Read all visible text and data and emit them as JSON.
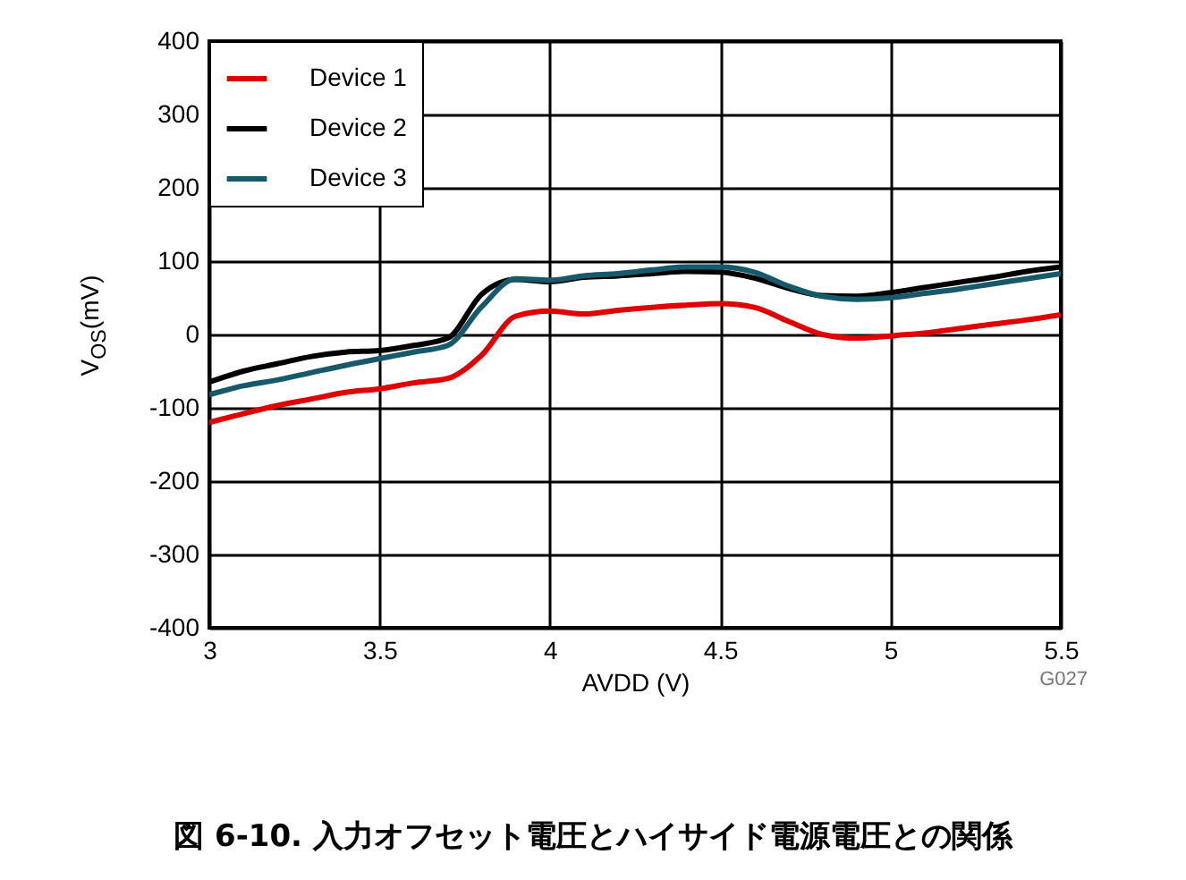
{
  "chart_data": {
    "type": "line",
    "title": "図 6-10. 入力オフセット電圧とハイサイド電源電圧との関係",
    "xlabel": "AVDD (V)",
    "ylabel": "V$_{OS}$(mV)",
    "annotations": [
      "G027"
    ],
    "x": [
      3,
      3.1,
      3.2,
      3.3,
      3.4,
      3.5,
      3.6,
      3.7,
      3.8,
      3.9,
      4,
      4.1,
      4.2,
      4.3,
      4.4,
      4.5,
      4.6,
      4.7,
      4.8,
      4.9,
      5,
      5.1,
      5.2,
      5.3,
      5.4,
      5.5
    ],
    "series": [
      {
        "name": "Device 1",
        "color": "#e00000",
        "values": [
          -120,
          -108,
          -97,
          -88,
          -79,
          -74,
          -66,
          -60,
          -28,
          25,
          32,
          28,
          33,
          37,
          40,
          42,
          37,
          18,
          0,
          -5,
          -2,
          2,
          8,
          14,
          20,
          27
        ]
      },
      {
        "name": "Device 2",
        "color": "#000000",
        "values": [
          -65,
          -50,
          -40,
          -30,
          -24,
          -22,
          -15,
          -5,
          55,
          75,
          72,
          78,
          80,
          83,
          86,
          85,
          77,
          63,
          53,
          52,
          57,
          64,
          71,
          78,
          86,
          92
        ]
      },
      {
        "name": "Device 3",
        "color": "#15596b",
        "values": [
          -82,
          -70,
          -62,
          -52,
          -42,
          -33,
          -24,
          -15,
          38,
          76,
          74,
          80,
          83,
          88,
          92,
          92,
          85,
          66,
          52,
          48,
          50,
          56,
          62,
          69,
          76,
          83
        ]
      }
    ],
    "xlim": [
      3,
      5.5
    ],
    "xticks": [
      3,
      3.5,
      4,
      4.5,
      5,
      5.5
    ],
    "ylim": [
      -400,
      400
    ],
    "yticks": [
      -400,
      -300,
      -200,
      -100,
      0,
      100,
      200,
      300,
      400
    ],
    "grid": true,
    "legend": "top left",
    "line_style": "solid",
    "marker": "none"
  }
}
